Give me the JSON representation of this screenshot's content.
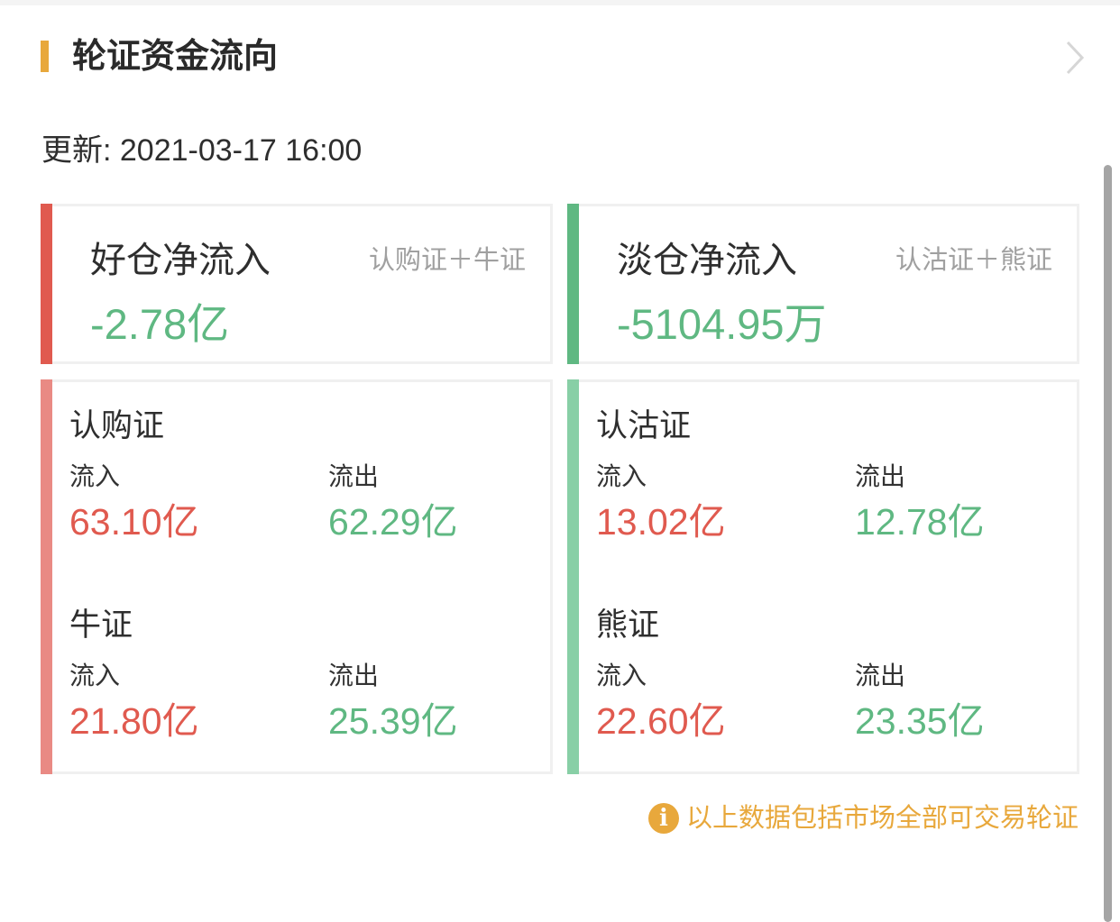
{
  "header": {
    "title": "轮证资金流向",
    "update": "更新: 2021-03-17 16:00"
  },
  "colors": {
    "accent": "#e8a83c",
    "up": "#e05a4f",
    "down": "#5fb882",
    "bull_bar": "#e98a84",
    "bear_bar": "#88cfa6"
  },
  "summary": [
    {
      "title": "好仓净流入",
      "subtitle": "认购证＋牛证",
      "value": "-2.78亿"
    },
    {
      "title": "淡仓净流入",
      "subtitle": "认沽证＋熊证",
      "value": "-5104.95万"
    }
  ],
  "details": [
    {
      "sections": [
        {
          "name": "认购证",
          "in_label": "流入",
          "in_value": "63.10亿",
          "out_label": "流出",
          "out_value": "62.29亿"
        },
        {
          "name": "牛证",
          "in_label": "流入",
          "in_value": "21.80亿",
          "out_label": "流出",
          "out_value": "25.39亿"
        }
      ]
    },
    {
      "sections": [
        {
          "name": "认沽证",
          "in_label": "流入",
          "in_value": "13.02亿",
          "out_label": "流出",
          "out_value": "12.78亿"
        },
        {
          "name": "熊证",
          "in_label": "流入",
          "in_value": "22.60亿",
          "out_label": "流出",
          "out_value": "23.35亿"
        }
      ]
    }
  ],
  "footer": {
    "icon": "info-icon",
    "note": "以上数据包括市场全部可交易轮证"
  }
}
